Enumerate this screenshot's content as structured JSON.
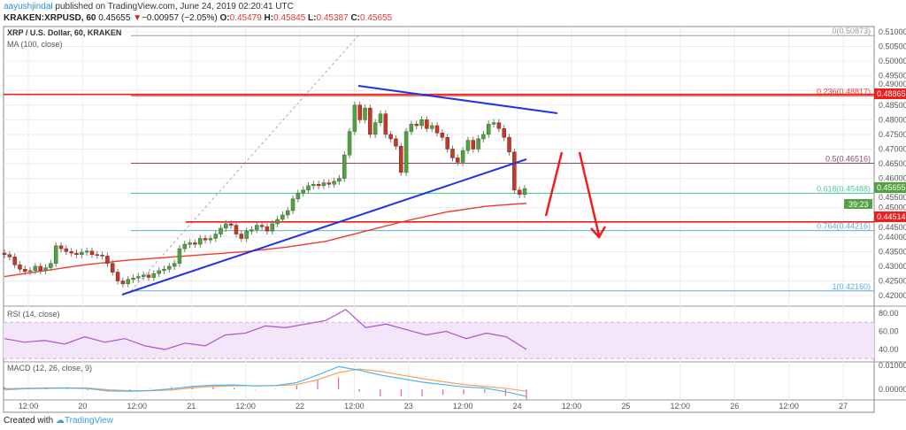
{
  "header": {
    "author": "aayushjindal",
    "published": "published on TradingView.com, June 24, 2019 02:20:41 UTC",
    "symbol": "KRAKEN:XRPUSD, 60",
    "last": "0.45655",
    "change": "−0.00957 (−2.05%)",
    "o_label": "O:",
    "o": "0.45479",
    "h_label": "H:",
    "h": "0.45845",
    "l_label": "L:",
    "l": "0.45387",
    "c_label": "C:",
    "c": "0.45655"
  },
  "legend": {
    "title": "XRP / U.S. Dollar, 60, KRAKEN",
    "ma": "MA (100, close)",
    "rsi": "RSI (14, close)",
    "macd": "MACD (12, 26, close, 9)"
  },
  "colors": {
    "up": "#53a142",
    "down": "#c0392b",
    "ma": "#f23b2f",
    "trend": "#1f35e0",
    "rsi": "#b04fd0",
    "macd": "#4db3f0",
    "signal": "#f5a25a"
  },
  "chart_data": {
    "type": "candlestick",
    "ylim": [
      0.4185,
      0.5115
    ],
    "price_ticks": [
      "0.51000",
      "0.50500",
      "0.50000",
      "0.49500",
      "0.49000",
      "0.48500",
      "0.48000",
      "0.47500",
      "0.47000",
      "0.46500",
      "0.46000",
      "0.45500",
      "0.45000",
      "0.44500",
      "0.44000",
      "0.43500",
      "0.43000",
      "0.42500",
      "0.42000"
    ],
    "closes": [
      0.434,
      0.4332,
      0.4305,
      0.429,
      0.4282,
      0.4285,
      0.43,
      0.4285,
      0.4295,
      0.431,
      0.437,
      0.436,
      0.435,
      0.4345,
      0.434,
      0.4348,
      0.4352,
      0.434,
      0.4338,
      0.4335,
      0.431,
      0.428,
      0.425,
      0.424,
      0.4255,
      0.426,
      0.4265,
      0.427,
      0.4262,
      0.4275,
      0.4285,
      0.429,
      0.43,
      0.431,
      0.436,
      0.4375,
      0.438,
      0.4375,
      0.4395,
      0.439,
      0.4395,
      0.441,
      0.443,
      0.4445,
      0.444,
      0.441,
      0.4395,
      0.442,
      0.4425,
      0.444,
      0.4435,
      0.442,
      0.4445,
      0.446,
      0.4475,
      0.449,
      0.453,
      0.455,
      0.456,
      0.4575,
      0.458,
      0.4575,
      0.4585,
      0.458,
      0.459,
      0.46,
      0.468,
      0.476,
      0.485,
      0.48,
      0.484,
      0.475,
      0.479,
      0.482,
      0.475,
      0.4735,
      0.471,
      0.462,
      0.476,
      0.4785,
      0.478,
      0.48,
      0.477,
      0.478,
      0.4755,
      0.474,
      0.47,
      0.467,
      0.4655,
      0.4695,
      0.473,
      0.47,
      0.4735,
      0.475,
      0.4785,
      0.479,
      0.477,
      0.474,
      0.469,
      0.456,
      0.4545,
      0.4565
    ],
    "ma100": [
      0.4265,
      0.4285,
      0.4305,
      0.432,
      0.433,
      0.434,
      0.435,
      0.4365,
      0.4385,
      0.442,
      0.4455,
      0.4485,
      0.4505,
      0.4515
    ],
    "fib": [
      {
        "label": "0(0.50873)",
        "value": 0.50873,
        "color": "#9e9e9e"
      },
      {
        "label": "0.236(0.48817)",
        "value": 0.48817,
        "color": "#f23b2f"
      },
      {
        "label": "0.5(0.46516)",
        "value": 0.46516,
        "color": "#8a4a5a"
      },
      {
        "label": "0.618(0.45488)",
        "value": 0.45488,
        "color": "#4cc99a"
      },
      {
        "label": "0.764(0.44216)",
        "value": 0.44216,
        "color": "#5aaee0"
      },
      {
        "label": "1(0.42160)",
        "value": 0.4216,
        "color": "#5aaee0"
      }
    ],
    "levels": [
      {
        "label": "0.48865",
        "value": 0.48865
      },
      {
        "label": "0.44514",
        "value": 0.44514
      }
    ],
    "last_price": "0.45655",
    "countdown": "39:23",
    "rsi_ticks": [
      "80.00",
      "60.00",
      "40.00"
    ],
    "rsi": [
      52,
      48,
      50,
      46,
      54,
      48,
      52,
      44,
      40,
      47,
      44,
      56,
      58,
      66,
      64,
      68,
      72,
      84,
      64,
      68,
      62,
      56,
      60,
      52,
      58,
      54,
      40
    ],
    "macd_ticks": [
      "0.01000",
      "0.00000"
    ],
    "macd": [
      0.0002,
      0.0004,
      0.0005,
      0.0006,
      0.0003,
      -0.0007,
      -0.0008,
      -0.0005,
      0.0002,
      0.0012,
      0.0017,
      0.0018,
      0.0014,
      0.0016,
      0.0028,
      0.006,
      0.0095,
      0.008,
      0.006,
      0.0045,
      0.003,
      0.002,
      0.001,
      0.0005,
      -0.001,
      -0.003
    ],
    "signal": [
      -0.0003,
      0.0002,
      0.0004,
      0.0005,
      0.0005,
      -0.0002,
      -0.0006,
      -0.0006,
      -0.0003,
      0.0006,
      0.0012,
      0.0015,
      0.0015,
      0.0015,
      0.002,
      0.004,
      0.007,
      0.0085,
      0.0075,
      0.006,
      0.0045,
      0.0032,
      0.002,
      0.0012,
      0.0004,
      -0.0008
    ],
    "time_ticks": [
      "12:00",
      "20",
      "12:00",
      "21",
      "12:00",
      "22",
      "12:00",
      "23",
      "12:00",
      "24",
      "12:00",
      "25",
      "12:00",
      "26",
      "12:00",
      "27"
    ]
  },
  "footer": {
    "created": "Created with",
    "brand": "TradingView"
  }
}
